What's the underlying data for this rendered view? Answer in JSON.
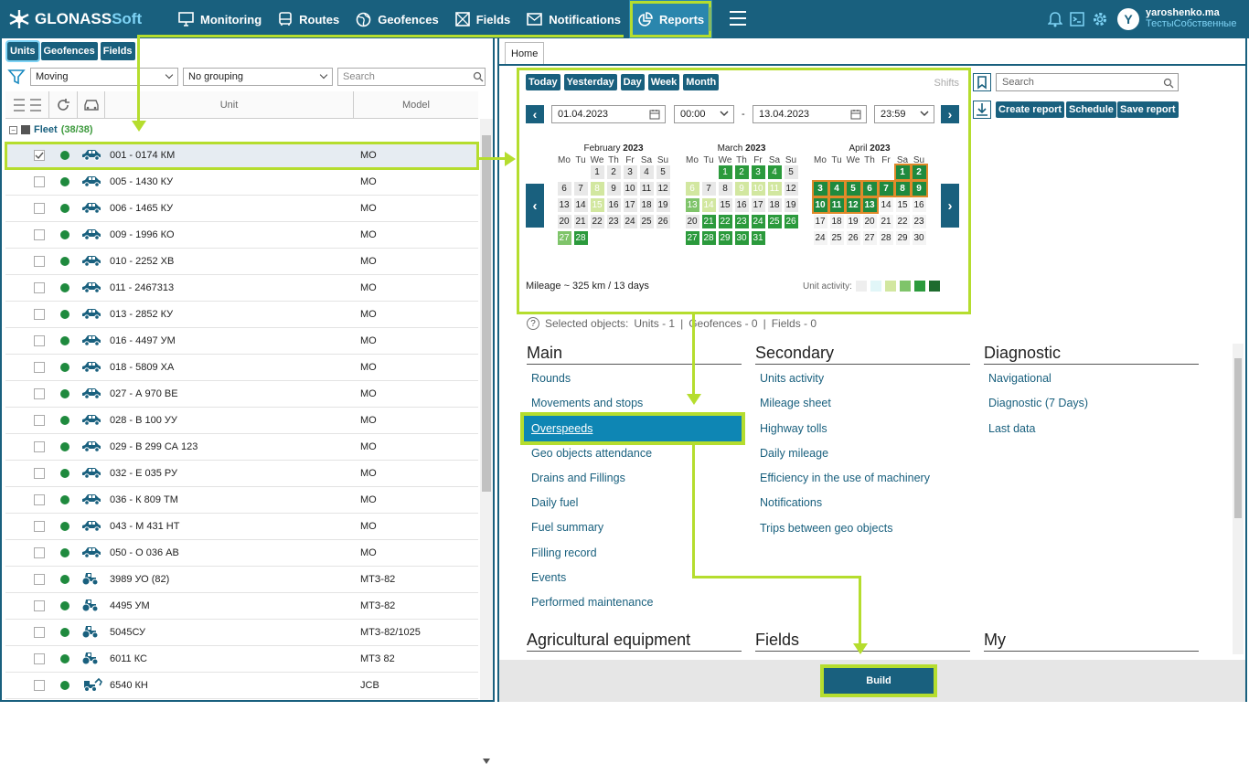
{
  "app": {
    "brand_main": "GLONASS",
    "brand_accent": "Soft"
  },
  "nav": [
    {
      "label": "Monitoring",
      "icon": "monitor-icon"
    },
    {
      "label": "Routes",
      "icon": "bus-icon"
    },
    {
      "label": "Geofences",
      "icon": "globe-icon"
    },
    {
      "label": "Fields",
      "icon": "fields-icon"
    },
    {
      "label": "Notifications",
      "icon": "mail-icon"
    },
    {
      "label": "Reports",
      "icon": "reports-icon"
    }
  ],
  "user": {
    "name": "yaroshenko.ma",
    "company": "ТестыСобственные",
    "initial": "Y"
  },
  "left": {
    "tabs": [
      "Units",
      "Geofences",
      "Fields"
    ],
    "filter": "Moving",
    "grouping": "No grouping",
    "search_placeholder": "Search",
    "col_unit": "Unit",
    "col_model": "Model",
    "fleet_label": "Fleet",
    "fleet_count": "(38/38)",
    "rows": [
      {
        "name": "001 - 0174 КМ",
        "model": "МО",
        "type": "car"
      },
      {
        "name": "005 - 1430 КУ",
        "model": "МО",
        "type": "car"
      },
      {
        "name": "006 - 1465 КУ",
        "model": "МО",
        "type": "car"
      },
      {
        "name": "009 - 1996 КО",
        "model": "МО",
        "type": "car"
      },
      {
        "name": "010 - 2252 ХВ",
        "model": "МО",
        "type": "car"
      },
      {
        "name": "011 - 2467313",
        "model": "МО",
        "type": "car"
      },
      {
        "name": "013 - 2852 КУ",
        "model": "МО",
        "type": "car"
      },
      {
        "name": "016 - 4497 УМ",
        "model": "МО",
        "type": "car"
      },
      {
        "name": "018 - 5809 ХА",
        "model": "МО",
        "type": "car"
      },
      {
        "name": "027 - А 970 ВЕ",
        "model": "МО",
        "type": "car"
      },
      {
        "name": "028 - В 100 УУ",
        "model": "МО",
        "type": "car"
      },
      {
        "name": "029 - В 299 СА 123",
        "model": "МО",
        "type": "car"
      },
      {
        "name": "032 - Е 035 РУ",
        "model": "МО",
        "type": "car"
      },
      {
        "name": "036 - К 809 ТМ",
        "model": "МО",
        "type": "car"
      },
      {
        "name": "043 - М 431 НТ",
        "model": "МО",
        "type": "car"
      },
      {
        "name": "050 - О 036 АВ",
        "model": "МО",
        "type": "car"
      },
      {
        "name": "3989 УО (82)",
        "model": "МТЗ-82",
        "type": "tractor"
      },
      {
        "name": "4495 УМ",
        "model": "МТЗ-82",
        "type": "tractor"
      },
      {
        "name": "5045СУ",
        "model": "МТЗ-82/1025",
        "type": "tractor"
      },
      {
        "name": "6011 КС",
        "model": "МТЗ 82",
        "type": "tractor"
      },
      {
        "name": "6540 КН",
        "model": "JCB",
        "type": "loader"
      }
    ]
  },
  "right": {
    "tab": "Home",
    "quick": [
      "Today",
      "Yesterday",
      "Day",
      "Week",
      "Month"
    ],
    "shifts": "Shifts",
    "date_from": "01.04.2023",
    "time_from": "00:00",
    "date_to": "13.04.2023",
    "time_to": "23:59",
    "dash": "-",
    "dow": [
      "Mo",
      "Tu",
      "We",
      "Th",
      "Fr",
      "Sa",
      "Su"
    ],
    "months": [
      {
        "name": "February",
        "year": "2023",
        "offset": 2,
        "days": 28,
        "act": {
          "1": 0,
          "2": 0,
          "3": 0,
          "4": 0,
          "5": 0,
          "6": 0,
          "7": 0,
          "8": 1,
          "9": 0,
          "10": 0,
          "11": 0,
          "12": 0,
          "13": 0,
          "14": 0,
          "15": 1,
          "16": 0,
          "17": 0,
          "18": 0,
          "19": 0,
          "20": 0,
          "21": 0,
          "22": 0,
          "23": 0,
          "24": 0,
          "25": 0,
          "26": 0,
          "27": 2,
          "28": 3
        }
      },
      {
        "name": "March",
        "year": "2023",
        "offset": 2,
        "days": 31,
        "act": {
          "1": 3,
          "2": 3,
          "3": 3,
          "4": 3,
          "5": 0,
          "6": 1,
          "7": 0,
          "8": 0,
          "9": 1,
          "10": 1,
          "11": 1,
          "12": 0,
          "13": 2,
          "14": 1,
          "15": 0,
          "16": 0,
          "17": 0,
          "18": 0,
          "19": 0,
          "20": 0,
          "21": 3,
          "22": 3,
          "23": 3,
          "24": 3,
          "25": 3,
          "26": 3,
          "27": 3,
          "28": 3,
          "29": 3,
          "30": 3,
          "31": 3
        }
      },
      {
        "name": "April",
        "year": "2023",
        "offset": 5,
        "days": 30,
        "act": {
          "1": 4,
          "2": 4,
          "3": 4,
          "4": 4,
          "5": 4,
          "6": 4,
          "7": 4,
          "8": 4,
          "9": 4,
          "10": 4,
          "11": 4,
          "12": 4,
          "13": 4
        }
      }
    ],
    "mileage": "Mileage ~ 325 km / 13 days",
    "activity_label": "Unit activity:",
    "activity_colors": [
      "#eeeeee",
      "#e1f6f8",
      "#d2e7a0",
      "#7fc46a",
      "#2b9a3c",
      "#1e6b2e"
    ],
    "search_placeholder": "Search",
    "tools": [
      "Create report",
      "Schedule",
      "Save report"
    ],
    "selected": {
      "label": "Selected objects:",
      "units": "Units - 1",
      "geofences": "Geofences - 0",
      "fields": "Fields - 0",
      "sep": "|"
    },
    "main": {
      "title": "Main",
      "items": [
        "Rounds",
        "Movements and stops",
        "Overspeeds",
        "Geo objects attendance",
        "Drains and Fillings",
        "Daily fuel",
        "Fuel summary",
        "Filling record",
        "Events",
        "Performed maintenance"
      ]
    },
    "secondary": {
      "title": "Secondary",
      "items": [
        "Units activity",
        "Mileage sheet",
        "Highway tolls",
        "Daily mileage",
        "Efficiency in the use of machinery",
        "Notifications",
        "Trips between geo objects"
      ]
    },
    "diagnostic": {
      "title": "Diagnostic",
      "items": [
        "Navigational",
        "Diagnostic (7 Days)",
        "Last data"
      ]
    },
    "bottom": [
      "Agricultural equipment",
      "Fields",
      "My"
    ],
    "build": "Build"
  }
}
